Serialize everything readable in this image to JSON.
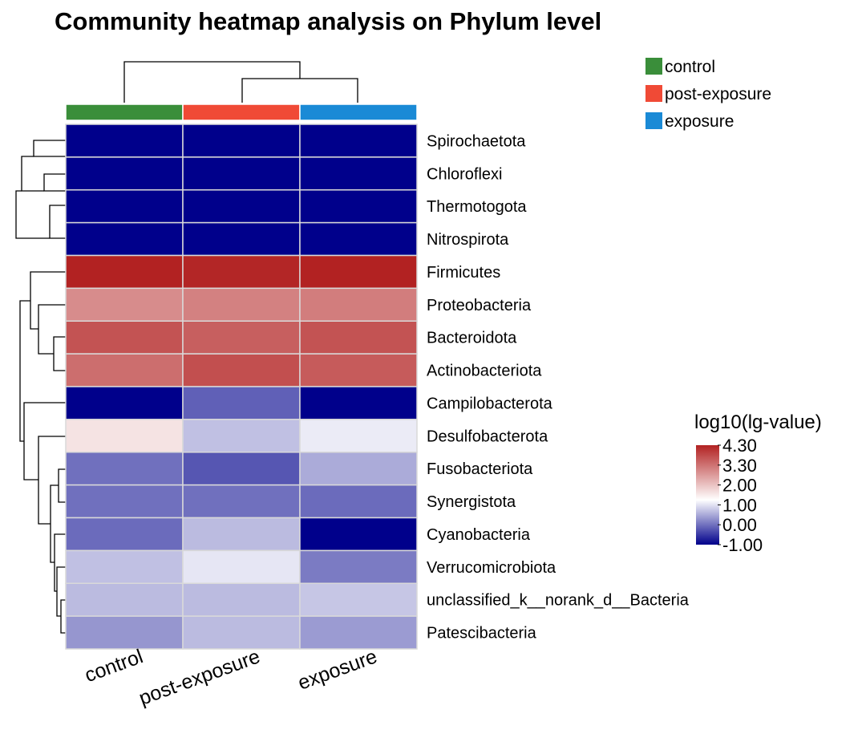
{
  "chart_data": {
    "type": "heatmap",
    "title": "Community heatmap analysis on Phylum level",
    "columns": [
      "control",
      "post-exposure",
      "exposure"
    ],
    "rows": [
      "Spirochaetota",
      "Chloroflexi",
      "Thermotogota",
      "Nitrospirota",
      "Firmicutes",
      "Proteobacteria",
      "Bacteroidota",
      "Actinobacteriota",
      "Campilobacterota",
      "Desulfobacterota",
      "Fusobacteriota",
      "Synergistota",
      "Cyanobacteria",
      "Verrucomicrobiota",
      "unclassified_k__norank_d__Bacteria",
      "Patescibacteria"
    ],
    "values": [
      [
        -1.0,
        -1.0,
        -1.0
      ],
      [
        -1.0,
        -1.0,
        -1.0
      ],
      [
        -1.0,
        -1.0,
        -1.0
      ],
      [
        -1.0,
        -1.0,
        -1.0
      ],
      [
        4.3,
        4.25,
        4.3
      ],
      [
        2.9,
        3.05,
        3.1
      ],
      [
        3.65,
        3.5,
        3.65
      ],
      [
        3.3,
        3.7,
        3.55
      ],
      [
        -1.0,
        -0.1,
        -1.0
      ],
      [
        1.75,
        0.8,
        1.2
      ],
      [
        0.05,
        -0.2,
        0.6
      ],
      [
        0.05,
        0.05,
        0.0
      ],
      [
        0.0,
        0.75,
        -1.0
      ],
      [
        0.8,
        1.15,
        0.15
      ],
      [
        0.75,
        0.75,
        0.85
      ],
      [
        0.4,
        0.75,
        0.45
      ]
    ],
    "column_groups": {
      "legend": [
        {
          "label": "control",
          "color": "#3a8e3a"
        },
        {
          "label": "post-exposure",
          "color": "#f04a36"
        },
        {
          "label": "exposure",
          "color": "#1a8ad6"
        }
      ]
    },
    "colorbar": {
      "title": "log10(lg-value)",
      "ticks": [
        "4.30",
        "3.30",
        "2.00",
        "1.00",
        "0.00",
        "-1.00"
      ],
      "range": [
        -1.0,
        4.3
      ],
      "colors": {
        "low": "#00008b",
        "mid": "#ffffff",
        "high": "#b22222"
      }
    }
  }
}
